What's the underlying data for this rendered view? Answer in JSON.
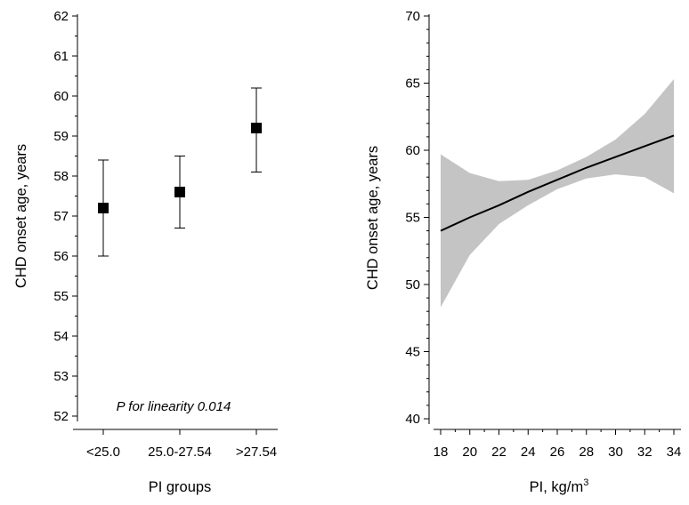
{
  "chart_data": [
    {
      "type": "scatter",
      "subtype": "point-with-error-bars",
      "xlabel": "PI groups",
      "ylabel": "CHD onset age, years",
      "categories": [
        "<25.0",
        "25.0-27.54",
        ">27.54"
      ],
      "values": [
        57.2,
        57.6,
        59.2
      ],
      "lower": [
        56.0,
        56.7,
        58.1
      ],
      "upper": [
        58.4,
        58.5,
        60.2
      ],
      "ylim": [
        52,
        62
      ],
      "yticks": [
        "52",
        "53",
        "54",
        "55",
        "56",
        "57",
        "58",
        "59",
        "60",
        "61",
        "62"
      ],
      "annotation": "P for linearity 0.014",
      "grid": false,
      "marker": "square",
      "colors": {
        "marker": "#000000",
        "line": "#000000"
      }
    },
    {
      "type": "line",
      "subtype": "fitted-curve-with-confidence-band",
      "xlabel": "PI, kg/m",
      "xlabel_superscript": "3",
      "ylabel": "CHD onset age, years",
      "x": [
        18,
        20,
        22,
        24,
        26,
        28,
        30,
        32,
        34
      ],
      "series": [
        {
          "values": [
            54.0,
            55.0,
            55.9,
            56.9,
            57.8,
            58.7,
            59.5,
            60.3,
            61.1
          ],
          "lower": [
            48.3,
            52.2,
            54.5,
            55.9,
            57.1,
            57.9,
            58.2,
            58.0,
            56.8
          ],
          "upper": [
            59.7,
            58.3,
            57.7,
            57.8,
            58.5,
            59.5,
            60.8,
            62.7,
            65.3
          ]
        }
      ],
      "xlim": [
        17.5,
        34.5
      ],
      "ylim": [
        40,
        70
      ],
      "xticks": [
        "18",
        "20",
        "22",
        "24",
        "26",
        "28",
        "30",
        "32",
        "34"
      ],
      "yticks": [
        "40",
        "45",
        "50",
        "55",
        "60",
        "65",
        "70"
      ],
      "grid": false,
      "colors": {
        "line": "#000000",
        "band": "#c4c4c4"
      }
    }
  ]
}
